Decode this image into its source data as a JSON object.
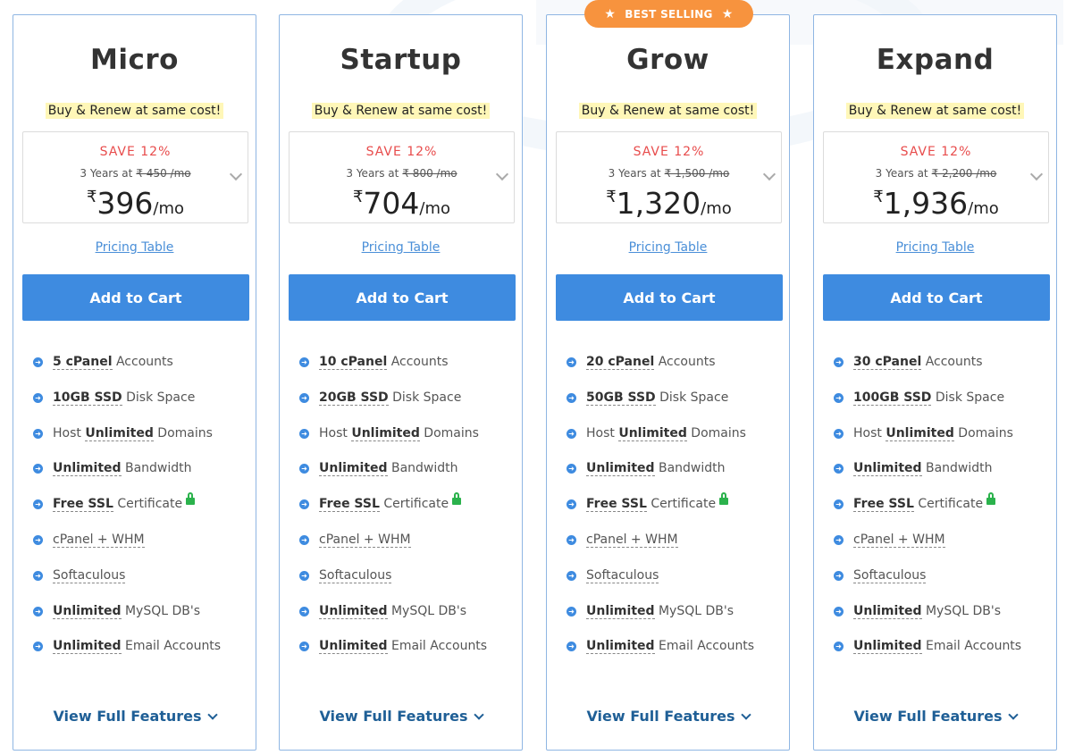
{
  "badge": {
    "label": "BEST SELLING",
    "star_icon": "star-icon"
  },
  "plans": [
    {
      "name": "Micro",
      "tagline": "Buy & Renew at same cost!",
      "save": "SAVE 12%",
      "term": "3 Years at",
      "old_price": "₹ 450 /mo",
      "currency": "₹",
      "price": "396",
      "per": "/mo",
      "pricing_link": "Pricing Table",
      "cart_label": "Add to Cart",
      "features": [
        {
          "bold": "5 cPanel",
          "text": " Accounts"
        },
        {
          "bold": "10GB SSD",
          "text": " Disk Space"
        },
        {
          "pre": "Host ",
          "bold": "Unlimited",
          "text": " Domains"
        },
        {
          "bold": "Unlimited",
          "text": " Bandwidth"
        },
        {
          "bold": "Free SSL",
          "text": " Certificate"
        },
        {
          "plain": "cPanel + WHM"
        },
        {
          "plain": "Softaculous"
        },
        {
          "bold": "Unlimited",
          "text": " MySQL DB's"
        },
        {
          "bold": "Unlimited",
          "text": " Email Accounts"
        }
      ],
      "view_full": "View Full Features"
    },
    {
      "name": "Startup",
      "tagline": "Buy & Renew at same cost!",
      "save": "SAVE 12%",
      "term": "3 Years at",
      "old_price": "₹ 800 /mo",
      "currency": "₹",
      "price": "704",
      "per": "/mo",
      "pricing_link": "Pricing Table",
      "cart_label": "Add to Cart",
      "features": [
        {
          "bold": "10 cPanel",
          "text": " Accounts"
        },
        {
          "bold": "20GB SSD",
          "text": " Disk Space"
        },
        {
          "pre": "Host ",
          "bold": "Unlimited",
          "text": " Domains"
        },
        {
          "bold": "Unlimited",
          "text": " Bandwidth"
        },
        {
          "bold": "Free SSL",
          "text": " Certificate"
        },
        {
          "plain": "cPanel + WHM"
        },
        {
          "plain": "Softaculous"
        },
        {
          "bold": "Unlimited",
          "text": " MySQL DB's"
        },
        {
          "bold": "Unlimited",
          "text": " Email Accounts"
        }
      ],
      "view_full": "View Full Features"
    },
    {
      "name": "Grow",
      "tagline": "Buy & Renew at same cost!",
      "save": "SAVE 12%",
      "term": "3 Years at",
      "old_price": "₹ 1,500 /mo",
      "currency": "₹",
      "price": "1,320",
      "per": "/mo",
      "pricing_link": "Pricing Table",
      "cart_label": "Add to Cart",
      "features": [
        {
          "bold": "20 cPanel",
          "text": " Accounts"
        },
        {
          "bold": "50GB SSD",
          "text": " Disk Space"
        },
        {
          "pre": "Host ",
          "bold": "Unlimited",
          "text": " Domains"
        },
        {
          "bold": "Unlimited",
          "text": " Bandwidth"
        },
        {
          "bold": "Free SSL",
          "text": " Certificate"
        },
        {
          "plain": "cPanel + WHM"
        },
        {
          "plain": "Softaculous"
        },
        {
          "bold": "Unlimited",
          "text": " MySQL DB's"
        },
        {
          "bold": "Unlimited",
          "text": " Email Accounts"
        }
      ],
      "view_full": "View Full Features"
    },
    {
      "name": "Expand",
      "tagline": "Buy & Renew at same cost!",
      "save": "SAVE 12%",
      "term": "3 Years at",
      "old_price": "₹ 2,200 /mo",
      "currency": "₹",
      "price": "1,936",
      "per": "/mo",
      "pricing_link": "Pricing Table",
      "cart_label": "Add to Cart",
      "features": [
        {
          "bold": "30 cPanel",
          "text": " Accounts"
        },
        {
          "bold": "100GB SSD",
          "text": " Disk Space"
        },
        {
          "pre": "Host ",
          "bold": "Unlimited",
          "text": " Domains"
        },
        {
          "bold": "Unlimited",
          "text": " Bandwidth"
        },
        {
          "bold": "Free SSL",
          "text": " Certificate"
        },
        {
          "plain": "cPanel + WHM"
        },
        {
          "plain": "Softaculous"
        },
        {
          "bold": "Unlimited",
          "text": " MySQL DB's"
        },
        {
          "bold": "Unlimited",
          "text": " Email Accounts"
        }
      ],
      "view_full": "View Full Features"
    }
  ],
  "colors": {
    "accent": "#3e8be0",
    "badge": "#f7933e",
    "save": "#e84c4c",
    "link": "#4a8fd8",
    "lock": "#2bb24c"
  }
}
